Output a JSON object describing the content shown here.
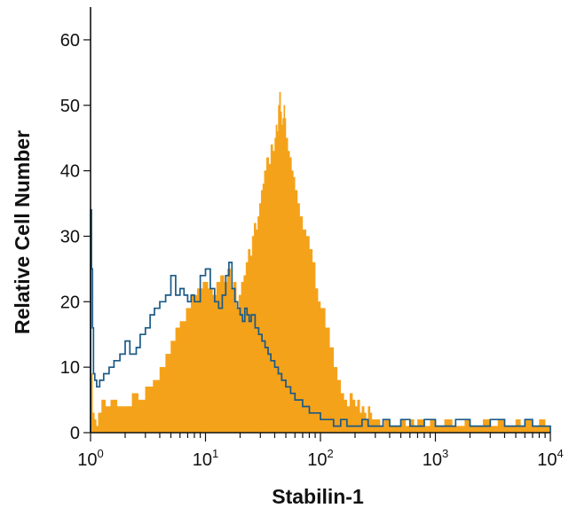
{
  "chart_data": {
    "type": "area",
    "xlabel": "Stabilin-1",
    "ylabel": "Relative Cell Number",
    "x_scale": "log",
    "xlim": [
      1,
      10000
    ],
    "ylim": [
      0,
      65
    ],
    "x_ticks": [
      {
        "value": 1,
        "base": "10",
        "exp": "0"
      },
      {
        "value": 10,
        "base": "10",
        "exp": "1"
      },
      {
        "value": 100,
        "base": "10",
        "exp": "2"
      },
      {
        "value": 1000,
        "base": "10",
        "exp": "3"
      },
      {
        "value": 10000,
        "base": "10",
        "exp": "4"
      }
    ],
    "y_ticks": [
      "0",
      "10",
      "20",
      "30",
      "40",
      "50",
      "60"
    ],
    "grid": false,
    "legend": "none",
    "series": [
      {
        "style": "filled-histogram",
        "color": "#F5A21B",
        "x": [
          1.0,
          1.04,
          1.08,
          1.12,
          1.17,
          1.25,
          1.35,
          1.5,
          1.7,
          2.0,
          2.3,
          2.6,
          3.0,
          3.5,
          4.0,
          4.5,
          5.0,
          5.5,
          6.0,
          6.8,
          7.5,
          8.5,
          9.5,
          10.5,
          11.5,
          12.5,
          13.5,
          14.5,
          15.5,
          16.5,
          17.5,
          18.5,
          19.5,
          20.5,
          21.5,
          22.5,
          23.5,
          24.5,
          25.5,
          26.5,
          27.5,
          28.5,
          29.5,
          30.5,
          31.5,
          32.5,
          34.0,
          35.5,
          37.0,
          38.5,
          40.0,
          41.0,
          42.0,
          43.0,
          44.0,
          45.0,
          46.0,
          47.0,
          48.0,
          49.0,
          50.0,
          52.0,
          54.0,
          56.0,
          58.0,
          60.0,
          63.0,
          66.0,
          70.0,
          75.0,
          80.0,
          85.0,
          90.0,
          95.0,
          100.0,
          110.0,
          120.0,
          130.0,
          140.0,
          150.0,
          160.0,
          170.0,
          180.0,
          190.0,
          200.0,
          210.0,
          220.0,
          230.0,
          240.0,
          250.0,
          260.0,
          270.0,
          280.0,
          300.0,
          330.0,
          360.0,
          400.0,
          450.0,
          500.0,
          550.0,
          600.0,
          650.0,
          700.0,
          800.0,
          900.0,
          1000.0,
          1200.0,
          1400.0,
          1600.0,
          1800.0,
          2000.0,
          2300.0,
          2600.0,
          3000.0,
          3500.0,
          4000.0,
          4500.0,
          5000.0,
          5500.0,
          6000.0,
          7000.0,
          8000.0,
          9000.0,
          10000.0
        ],
        "y": [
          9,
          3,
          2,
          1,
          3,
          5,
          4,
          5,
          4,
          4,
          6,
          5,
          7,
          8,
          10,
          12,
          14,
          16,
          17,
          19,
          21,
          22,
          23,
          22,
          21,
          23,
          24,
          23,
          25,
          22,
          23,
          19,
          21,
          23,
          24,
          26,
          28,
          27,
          30,
          32,
          31,
          33,
          35,
          37,
          38,
          40,
          42,
          41,
          44,
          43,
          45,
          47,
          46,
          50,
          52,
          49,
          47,
          48,
          50,
          48,
          45,
          43,
          42,
          40,
          39,
          37,
          35,
          33,
          31,
          30,
          28,
          26,
          22,
          20,
          19,
          16,
          13,
          10,
          8,
          6,
          5,
          4,
          6,
          5,
          4,
          5,
          3,
          4,
          3,
          2,
          4,
          3,
          2,
          2,
          1,
          2,
          1,
          1,
          2,
          1,
          2,
          1,
          2,
          1,
          2,
          1,
          2,
          1,
          1,
          2,
          1,
          1,
          2,
          1,
          2,
          1,
          1,
          2,
          1,
          2,
          1,
          2,
          1,
          0
        ]
      },
      {
        "style": "outline-histogram",
        "color": "#1B5A86",
        "x": [
          1.0,
          1.02,
          1.04,
          1.06,
          1.09,
          1.13,
          1.2,
          1.3,
          1.45,
          1.6,
          1.8,
          2.0,
          2.2,
          2.5,
          2.7,
          3.0,
          3.3,
          3.6,
          4.0,
          4.5,
          5.0,
          5.5,
          6.0,
          6.5,
          7.0,
          7.5,
          8.0,
          9.0,
          10.0,
          11.0,
          12.0,
          13.0,
          14.0,
          15.0,
          16.0,
          17.0,
          18.0,
          19.0,
          20.0,
          21.0,
          22.0,
          23.0,
          24.0,
          25.0,
          27.0,
          29.0,
          31.0,
          33.0,
          35.0,
          37.0,
          40.0,
          43.0,
          46.0,
          50.0,
          55.0,
          60.0,
          65.0,
          70.0,
          75.0,
          80.0,
          90.0,
          100.0,
          115.0,
          130.0,
          150.0,
          170.0,
          200.0,
          230.0,
          260.0,
          300.0,
          350.0,
          400.0,
          450.0,
          500.0,
          600.0,
          700.0,
          800.0,
          1000.0,
          1200.0,
          1500.0,
          2000.0,
          2500.0,
          3000.0,
          4000.0,
          5000.0,
          6000.0,
          7000.0,
          8000.0,
          9000.0,
          10000.0
        ],
        "y": [
          34,
          25,
          16,
          9,
          8,
          7,
          8,
          9,
          10,
          11,
          12,
          14,
          12,
          13,
          15,
          16,
          18,
          19,
          20,
          21,
          24,
          21,
          22,
          21,
          20,
          21,
          20,
          24,
          25,
          22,
          20,
          19,
          21,
          24,
          26,
          22,
          20,
          19,
          18,
          17,
          19,
          18,
          17,
          18,
          16,
          15,
          14,
          13,
          12,
          11,
          10,
          9,
          8,
          7,
          6,
          5,
          5,
          4,
          4,
          3,
          3,
          2,
          2,
          1,
          2,
          1,
          1,
          2,
          1,
          1,
          2,
          1,
          1,
          2,
          1,
          1,
          2,
          1,
          1,
          2,
          1,
          1,
          2,
          1,
          1,
          2,
          1,
          1,
          1,
          0
        ]
      }
    ]
  }
}
